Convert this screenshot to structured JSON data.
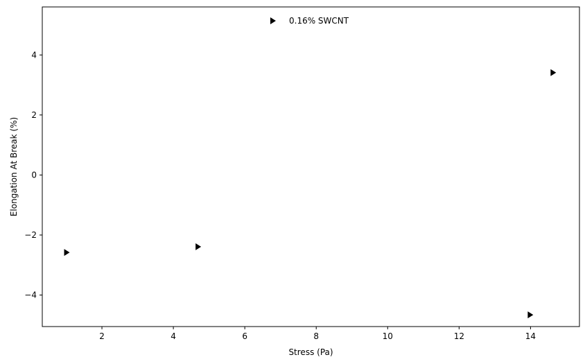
{
  "chart_data": {
    "type": "scatter",
    "title": "",
    "xlabel": "Stress (Pa)",
    "ylabel": "Elongation At Break (%)",
    "xlim": [
      0.33,
      15.37
    ],
    "ylim": [
      -5.05,
      5.6
    ],
    "xticks": [
      2,
      4,
      6,
      8,
      10,
      12,
      14
    ],
    "yticks": [
      -4,
      -2,
      0,
      2,
      4
    ],
    "grid": false,
    "legend_position": "top-center",
    "series": [
      {
        "name": "0.16% SWCNT",
        "marker": "triangle-right",
        "color": "#000000",
        "x": [
          1.0,
          4.68,
          13.98,
          14.62
        ],
        "y": [
          -2.58,
          -2.39,
          -4.66,
          3.41
        ]
      }
    ]
  }
}
